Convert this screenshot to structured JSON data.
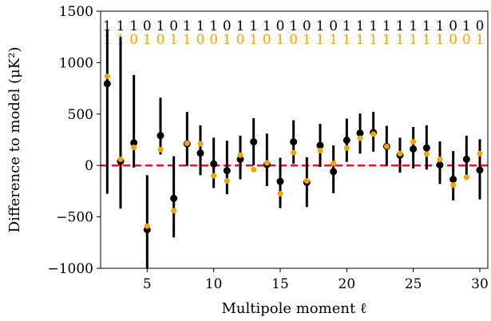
{
  "chart_data": {
    "type": "scatter",
    "title": "",
    "xlabel": "Multipole moment ℓ",
    "ylabel": "Difference to model (μK²)",
    "xlim": [
      1.5,
      30.6
    ],
    "ylim": [
      -1000,
      1500
    ],
    "xticks": [
      5,
      10,
      15,
      20,
      25,
      30
    ],
    "yticks": [
      -1000,
      -500,
      0,
      500,
      1000,
      1500
    ],
    "xtick_labels": [
      "5",
      "10",
      "15",
      "20",
      "25",
      "30"
    ],
    "ytick_labels": [
      "−1000",
      "−500",
      "0",
      "500",
      "1000",
      "1500"
    ],
    "grid": false,
    "zero_line": {
      "y": 0,
      "color": "#e31a1c",
      "style": "dashed"
    },
    "series": [
      {
        "color": "#000000",
        "x": [
          2,
          3,
          4,
          5,
          6,
          7,
          8,
          9,
          10,
          11,
          12,
          13,
          14,
          15,
          16,
          17,
          18,
          19,
          20,
          21,
          22,
          23,
          24,
          25,
          26,
          27,
          28,
          29,
          30
        ],
        "y": [
          795,
          40,
          220,
          -625,
          290,
          -320,
          210,
          120,
          15,
          -50,
          60,
          230,
          10,
          -155,
          230,
          -165,
          195,
          -60,
          245,
          315,
          320,
          185,
          100,
          160,
          170,
          5,
          -135,
          60,
          -45
        ],
        "err_low": [
          1070,
          460,
          240,
          380,
          185,
          380,
          215,
          215,
          235,
          230,
          195,
          230,
          210,
          260,
          215,
          240,
          210,
          210,
          210,
          200,
          185,
          190,
          170,
          190,
          210,
          185,
          205,
          200,
          285
        ],
        "err_high": [
          520,
          1210,
          660,
          530,
          370,
          410,
          310,
          270,
          255,
          290,
          230,
          230,
          300,
          230,
          210,
          245,
          210,
          255,
          210,
          190,
          200,
          200,
          170,
          215,
          220,
          230,
          275,
          230,
          300
        ],
        "markers": [
          "1",
          "1",
          "1",
          "0",
          "1",
          "0",
          "1",
          "1",
          "1",
          "0",
          "1",
          "1",
          "1",
          "0",
          "1",
          "0",
          "1",
          "0",
          "1",
          "1",
          "1",
          "1",
          "1",
          "1",
          "1",
          "1",
          "0",
          "1",
          "0"
        ]
      },
      {
        "color": "#f5a300",
        "x": [
          2,
          3,
          4,
          5,
          6,
          7,
          8,
          9,
          10,
          11,
          12,
          13,
          14,
          15,
          16,
          17,
          18,
          19,
          20,
          21,
          22,
          23,
          24,
          25,
          26,
          27,
          28,
          29,
          30
        ],
        "y": [
          865,
          60,
          175,
          -590,
          155,
          -440,
          215,
          210,
          -100,
          -150,
          100,
          -40,
          25,
          -275,
          125,
          -150,
          145,
          20,
          170,
          265,
          305,
          185,
          115,
          230,
          110,
          60,
          -190,
          -115,
          115
        ],
        "markers": [
          "1",
          "1",
          "0",
          "1",
          "0",
          "1",
          "1",
          "0",
          "0",
          "1",
          "0",
          "1",
          "0",
          "1",
          "0",
          "1",
          "1",
          "1",
          "1",
          "1",
          "1",
          "1",
          "1",
          "1",
          "1",
          "1",
          "0",
          "0",
          "1"
        ]
      }
    ]
  }
}
